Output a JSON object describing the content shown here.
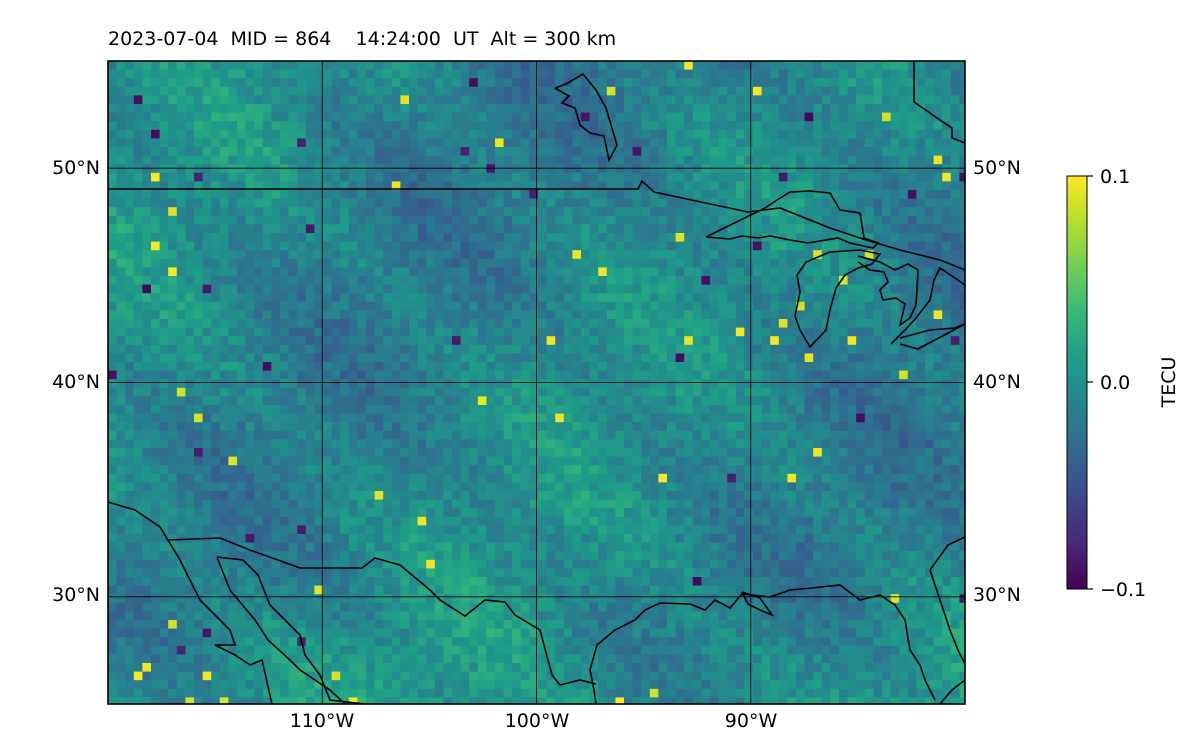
{
  "title": "2023-07-04  MID = 864    14:24:00  UT  Alt = 300 km",
  "map": {
    "lat_labels": [
      "50°N",
      "40°N",
      "30°N"
    ],
    "lon_labels": [
      "110°W",
      "100°W",
      "90°W"
    ],
    "lat_values": [
      50,
      40,
      30
    ],
    "lon_values": [
      -110,
      -100,
      -90
    ],
    "extent": {
      "lon_min": -120,
      "lon_max": -80,
      "lat_min": 25,
      "lat_max": 55
    },
    "gridlines": true,
    "colormap": "viridis"
  },
  "colorbar": {
    "label": "TECU",
    "ticks": [
      "0.1",
      "0.0",
      "−0.1"
    ],
    "tick_values": [
      0.1,
      0.0,
      -0.1
    ],
    "range": [
      -0.1,
      0.1
    ],
    "colors": [
      "#440154",
      "#482878",
      "#3e4989",
      "#31688e",
      "#26828e",
      "#1f9e89",
      "#35b779",
      "#6ece58",
      "#b5de2b",
      "#fde725"
    ]
  }
}
